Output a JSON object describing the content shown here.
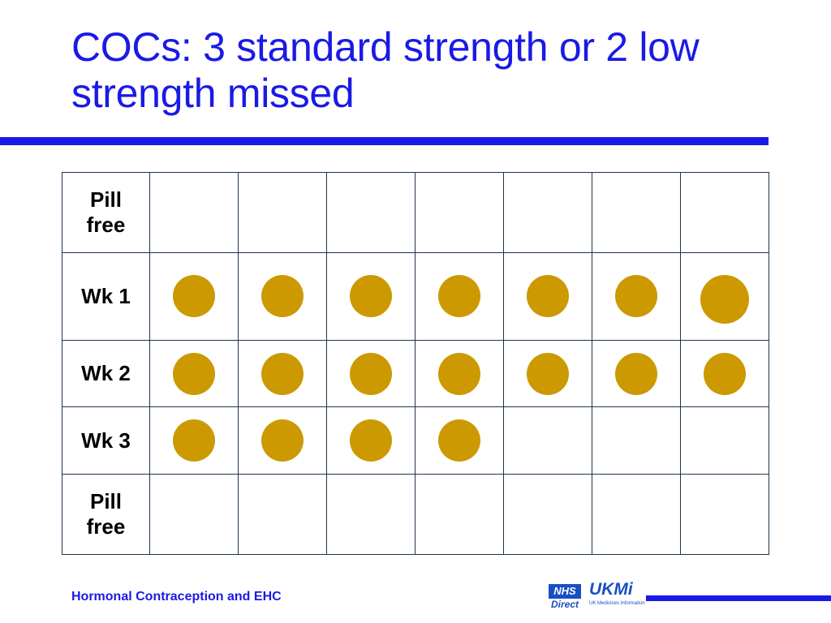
{
  "slide": {
    "title": "COCs: 3 standard strength or 2 low strength missed",
    "footer": "Hormonal Contraception and EHC",
    "colors": {
      "title": "#1a1ae6",
      "rule": "#1a1ae6",
      "pill": "#cc9900",
      "grid_border": "#1f3550"
    }
  },
  "logos": {
    "nhs": {
      "box": "NHS",
      "sub": "Direct"
    },
    "ukmi": {
      "main": "UKMi",
      "sub": "UK Medicines Information"
    }
  },
  "table": {
    "rows": [
      {
        "label": "Pill free",
        "pills": [
          false,
          false,
          false,
          false,
          false,
          false,
          false
        ]
      },
      {
        "label": "Wk 1",
        "pills": [
          true,
          true,
          true,
          true,
          true,
          true,
          true
        ]
      },
      {
        "label": "Wk 2",
        "pills": [
          true,
          true,
          true,
          true,
          true,
          true,
          true
        ]
      },
      {
        "label": "Wk 3",
        "pills": [
          true,
          true,
          true,
          true,
          false,
          false,
          false
        ]
      },
      {
        "label": "Pill free",
        "pills": [
          false,
          false,
          false,
          false,
          false,
          false,
          false
        ]
      }
    ]
  }
}
